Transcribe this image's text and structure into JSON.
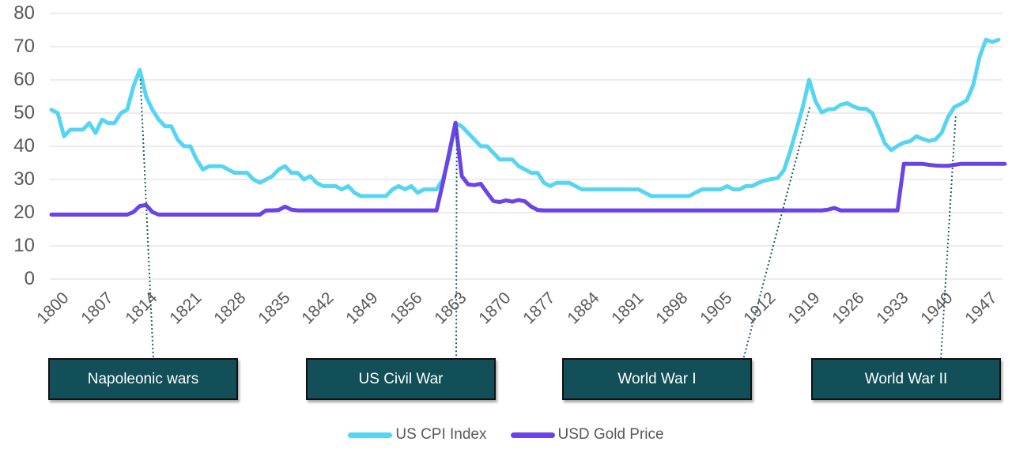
{
  "chart_data": {
    "type": "line",
    "title": "",
    "grid": "horizontal-only",
    "legend_position": "bottom-center",
    "x_axis": {
      "range": [
        1800,
        1950
      ],
      "tick_years": [
        1800,
        1807,
        1814,
        1821,
        1828,
        1835,
        1842,
        1849,
        1856,
        1863,
        1870,
        1877,
        1884,
        1891,
        1898,
        1905,
        1912,
        1919,
        1926,
        1933,
        1940,
        1947
      ]
    },
    "y_axis": {
      "range": [
        0,
        80
      ],
      "ticks": [
        0,
        10,
        20,
        30,
        40,
        50,
        60,
        70,
        80
      ]
    },
    "series": [
      {
        "name": "US CPI Index",
        "color": "#56D5F3",
        "start_year": 1800,
        "step": 1,
        "values": [
          51,
          50,
          43,
          45,
          45,
          45,
          47,
          44,
          48,
          47,
          47,
          50,
          51,
          58,
          63,
          55,
          51,
          48,
          46,
          46,
          42,
          40,
          40,
          36,
          33,
          34,
          34,
          34,
          33,
          32,
          32,
          32,
          30,
          29,
          30,
          31,
          33,
          34,
          32,
          32,
          30,
          31,
          29,
          28,
          28,
          28,
          27,
          28,
          26,
          25,
          25,
          25,
          25,
          25,
          27,
          28,
          27,
          28,
          26,
          27,
          27,
          27,
          30,
          37,
          47,
          46,
          44,
          42,
          40,
          40,
          38,
          36,
          36,
          36,
          34,
          33,
          32,
          32,
          29,
          28,
          29,
          29,
          29,
          28,
          27,
          27,
          27,
          27,
          27,
          27,
          27,
          27,
          27,
          27,
          26,
          25,
          25,
          25,
          25,
          25,
          25,
          25,
          26,
          27,
          27,
          27,
          27,
          28,
          27,
          27,
          28,
          28,
          29,
          29.7,
          30.1,
          30.4,
          32.7,
          38.4,
          45.1,
          51.8,
          60,
          53.6,
          50.2,
          51.1,
          51.2,
          52.5,
          53,
          52,
          51.3,
          51.3,
          50,
          45.6,
          40.9,
          38.8,
          40.1,
          41.1,
          41.5,
          43,
          42.2,
          41.6,
          42,
          44.1,
          48.8,
          51.8,
          52.7,
          53.9,
          58.5,
          66.9,
          72.1,
          71.4,
          72.1
        ]
      },
      {
        "name": "USD Gold Price",
        "color": "#6C43E5",
        "start_year": 1800,
        "step": 1,
        "values": [
          19.4,
          19.4,
          19.4,
          19.4,
          19.4,
          19.4,
          19.4,
          19.4,
          19.4,
          19.4,
          19.4,
          19.4,
          19.4,
          20.2,
          22,
          22.3,
          20.2,
          19.4,
          19.4,
          19.4,
          19.4,
          19.4,
          19.4,
          19.4,
          19.4,
          19.4,
          19.4,
          19.4,
          19.4,
          19.4,
          19.4,
          19.4,
          19.4,
          19.4,
          20.7,
          20.7,
          20.8,
          21.8,
          20.9,
          20.7,
          20.7,
          20.7,
          20.7,
          20.7,
          20.7,
          20.7,
          20.7,
          20.7,
          20.7,
          20.7,
          20.7,
          20.7,
          20.7,
          20.7,
          20.7,
          20.7,
          20.7,
          20.7,
          20.7,
          20.7,
          20.7,
          20.7,
          29,
          38,
          47.1,
          31,
          28.5,
          28.3,
          28.7,
          26,
          23.5,
          23.2,
          23.7,
          23.3,
          23.8,
          23.4,
          21.8,
          20.8,
          20.7,
          20.7,
          20.7,
          20.7,
          20.7,
          20.7,
          20.7,
          20.7,
          20.7,
          20.7,
          20.7,
          20.7,
          20.7,
          20.7,
          20.7,
          20.7,
          20.7,
          20.7,
          20.7,
          20.7,
          20.7,
          20.7,
          20.7,
          20.7,
          20.7,
          20.7,
          20.7,
          20.7,
          20.7,
          20.7,
          20.7,
          20.7,
          20.7,
          20.7,
          20.7,
          20.7,
          20.7,
          20.7,
          20.7,
          20.7,
          20.7,
          20.7,
          20.7,
          20.7,
          20.7,
          20.9,
          21.4,
          20.7,
          20.7,
          20.7,
          20.7,
          20.7,
          20.7,
          20.7,
          20.7,
          20.7,
          20.7,
          34.7,
          34.7,
          34.7,
          34.7,
          34.4,
          34.2,
          34.1,
          34.1,
          34.4,
          34.7,
          34.7,
          34.7,
          34.7,
          34.7,
          34.7,
          34.7,
          34.7
        ]
      }
    ],
    "annotations": [
      {
        "label": "Napoleonic wars",
        "point_year": 1814.1,
        "point_value": 60.2
      },
      {
        "label": "US Civil War",
        "point_year": 1864.2,
        "point_value": 45.2
      },
      {
        "label": "World War I",
        "point_year": 1920.1,
        "point_value": 51.7
      },
      {
        "label": "World War II",
        "point_year": 1943.2,
        "point_value": 49.0
      }
    ],
    "colors": {
      "grid": "#D9D9D9",
      "tick_text": "#595959",
      "annotation_box_fill": "#124F58",
      "annotation_box_border": "#111111",
      "annotation_box_text": "#FFFFFF",
      "connector": "#1C5F66"
    }
  }
}
